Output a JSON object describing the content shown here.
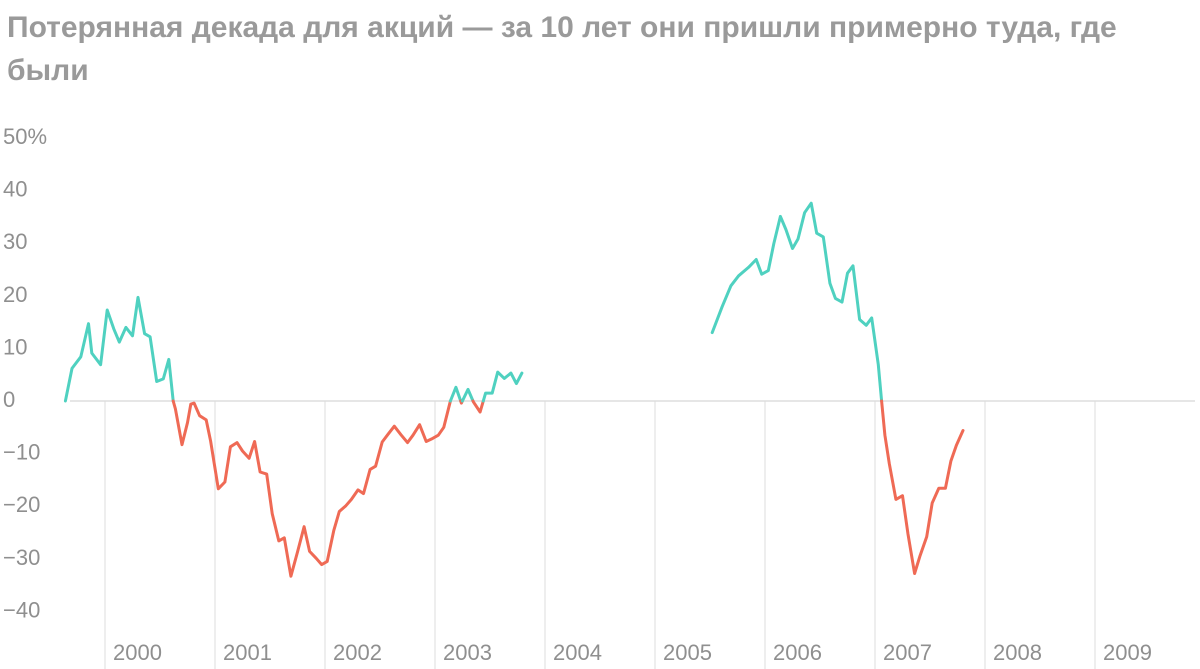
{
  "chart_data": {
    "type": "line",
    "title": "Потерянная декада для акций — за 10 лет они пришли примерно туда, где были",
    "xlabel": "",
    "ylabel": "",
    "ylim": [
      -45,
      52
    ],
    "xlim": [
      1999.5,
      2009.7
    ],
    "y_ticks": [
      {
        "value": 50,
        "label": "50%"
      },
      {
        "value": 40,
        "label": "40"
      },
      {
        "value": 30,
        "label": "30"
      },
      {
        "value": 20,
        "label": "20"
      },
      {
        "value": 10,
        "label": "10"
      },
      {
        "value": 0,
        "label": "0"
      },
      {
        "value": -10,
        "label": "−10"
      },
      {
        "value": -20,
        "label": "−20"
      },
      {
        "value": -30,
        "label": "−30"
      },
      {
        "value": -40,
        "label": "−40"
      }
    ],
    "x_ticks": [
      {
        "year": 2000,
        "label": "2000"
      },
      {
        "year": 2001,
        "label": "2001"
      },
      {
        "year": 2002,
        "label": "2002"
      },
      {
        "year": 2003,
        "label": "2003"
      },
      {
        "year": 2004,
        "label": "2004"
      },
      {
        "year": 2005,
        "label": "2005"
      },
      {
        "year": 2006,
        "label": "2006"
      },
      {
        "year": 2007,
        "label": "2007"
      },
      {
        "year": 2008,
        "label": "2008"
      },
      {
        "year": 2009,
        "label": "2009"
      }
    ],
    "grid": "vertical lines at year boundaries",
    "colors": {
      "positive": "#4fd1c0",
      "negative": "#ef6a55",
      "grid": "#dddddd",
      "text": "#8f8f8f",
      "title": "#9a9a9a"
    },
    "segments": [
      {
        "points": [
          [
            1999.64,
            0.0
          ],
          [
            1999.7,
            6.2
          ],
          [
            1999.78,
            8.4
          ],
          [
            1999.85,
            14.7
          ],
          [
            1999.88,
            9.1
          ],
          [
            1999.96,
            6.9
          ],
          [
            2000.02,
            17.3
          ],
          [
            2000.08,
            13.7
          ],
          [
            2000.13,
            11.2
          ],
          [
            2000.19,
            14.0
          ],
          [
            2000.25,
            12.4
          ],
          [
            2000.3,
            19.7
          ],
          [
            2000.36,
            12.8
          ],
          [
            2000.41,
            12.2
          ],
          [
            2000.47,
            3.7
          ],
          [
            2000.53,
            4.2
          ],
          [
            2000.58,
            7.9
          ],
          [
            2000.62,
            0.0
          ],
          [
            2000.64,
            -1.5
          ],
          [
            2000.7,
            -8.3
          ],
          [
            2000.75,
            -4.1
          ],
          [
            2000.78,
            -0.6
          ],
          [
            2000.81,
            -0.4
          ],
          [
            2000.86,
            -2.8
          ],
          [
            2000.92,
            -3.6
          ],
          [
            2000.96,
            -7.6
          ],
          [
            2001.03,
            -16.7
          ],
          [
            2001.09,
            -15.4
          ],
          [
            2001.14,
            -8.7
          ],
          [
            2001.2,
            -7.9
          ],
          [
            2001.25,
            -9.5
          ],
          [
            2001.31,
            -10.9
          ],
          [
            2001.36,
            -7.7
          ],
          [
            2001.41,
            -13.5
          ],
          [
            2001.47,
            -13.9
          ],
          [
            2001.52,
            -21.4
          ],
          [
            2001.58,
            -26.6
          ],
          [
            2001.63,
            -26.0
          ],
          [
            2001.69,
            -33.3
          ],
          [
            2001.75,
            -28.7
          ],
          [
            2001.81,
            -23.9
          ],
          [
            2001.86,
            -28.6
          ],
          [
            2001.92,
            -29.9
          ],
          [
            2001.97,
            -31.1
          ],
          [
            2002.02,
            -30.5
          ],
          [
            2002.08,
            -24.6
          ],
          [
            2002.13,
            -21.0
          ],
          [
            2002.19,
            -19.9
          ],
          [
            2002.24,
            -18.7
          ],
          [
            2002.3,
            -16.9
          ],
          [
            2002.35,
            -17.6
          ],
          [
            2002.41,
            -13.0
          ],
          [
            2002.46,
            -12.4
          ],
          [
            2002.52,
            -7.8
          ],
          [
            2002.57,
            -6.4
          ],
          [
            2002.63,
            -4.8
          ],
          [
            2002.69,
            -6.4
          ],
          [
            2002.75,
            -7.9
          ],
          [
            2002.8,
            -6.5
          ],
          [
            2002.86,
            -4.5
          ],
          [
            2002.92,
            -7.7
          ],
          [
            2002.97,
            -7.2
          ],
          [
            2003.03,
            -6.5
          ],
          [
            2003.08,
            -5.0
          ],
          [
            2003.14,
            0.0
          ],
          [
            2003.19,
            2.6
          ],
          [
            2003.24,
            -0.4
          ],
          [
            2003.3,
            2.2
          ],
          [
            2003.35,
            -0.2
          ],
          [
            2003.41,
            -2.1
          ],
          [
            2003.46,
            1.5
          ],
          [
            2003.52,
            1.5
          ],
          [
            2003.57,
            5.5
          ],
          [
            2003.63,
            4.3
          ],
          [
            2003.69,
            5.3
          ],
          [
            2003.74,
            3.3
          ],
          [
            2003.79,
            5.3
          ]
        ]
      },
      {
        "points": [
          [
            2005.52,
            13.0
          ],
          [
            2005.61,
            17.9
          ],
          [
            2005.69,
            21.9
          ],
          [
            2005.76,
            23.8
          ],
          [
            2005.85,
            25.4
          ],
          [
            2005.92,
            26.9
          ],
          [
            2005.97,
            24.1
          ],
          [
            2006.03,
            24.8
          ],
          [
            2006.08,
            29.9
          ],
          [
            2006.14,
            35.1
          ],
          [
            2006.19,
            32.6
          ],
          [
            2006.25,
            29.0
          ],
          [
            2006.3,
            30.8
          ],
          [
            2006.36,
            35.8
          ],
          [
            2006.42,
            37.6
          ],
          [
            2006.47,
            31.9
          ],
          [
            2006.53,
            31.2
          ],
          [
            2006.59,
            22.4
          ],
          [
            2006.64,
            19.5
          ],
          [
            2006.7,
            18.8
          ],
          [
            2006.75,
            24.3
          ],
          [
            2006.8,
            25.7
          ],
          [
            2006.86,
            15.5
          ],
          [
            2006.92,
            14.4
          ],
          [
            2006.97,
            15.8
          ],
          [
            2007.03,
            6.9
          ],
          [
            2007.06,
            0.0
          ],
          [
            2007.09,
            -6.5
          ],
          [
            2007.13,
            -11.9
          ],
          [
            2007.19,
            -18.7
          ],
          [
            2007.25,
            -18.0
          ],
          [
            2007.3,
            -25.3
          ],
          [
            2007.36,
            -32.8
          ],
          [
            2007.41,
            -29.4
          ],
          [
            2007.47,
            -25.8
          ],
          [
            2007.52,
            -19.4
          ],
          [
            2007.58,
            -16.6
          ],
          [
            2007.64,
            -16.6
          ],
          [
            2007.69,
            -11.4
          ],
          [
            2007.74,
            -8.4
          ],
          [
            2007.8,
            -5.6
          ]
        ]
      }
    ]
  }
}
